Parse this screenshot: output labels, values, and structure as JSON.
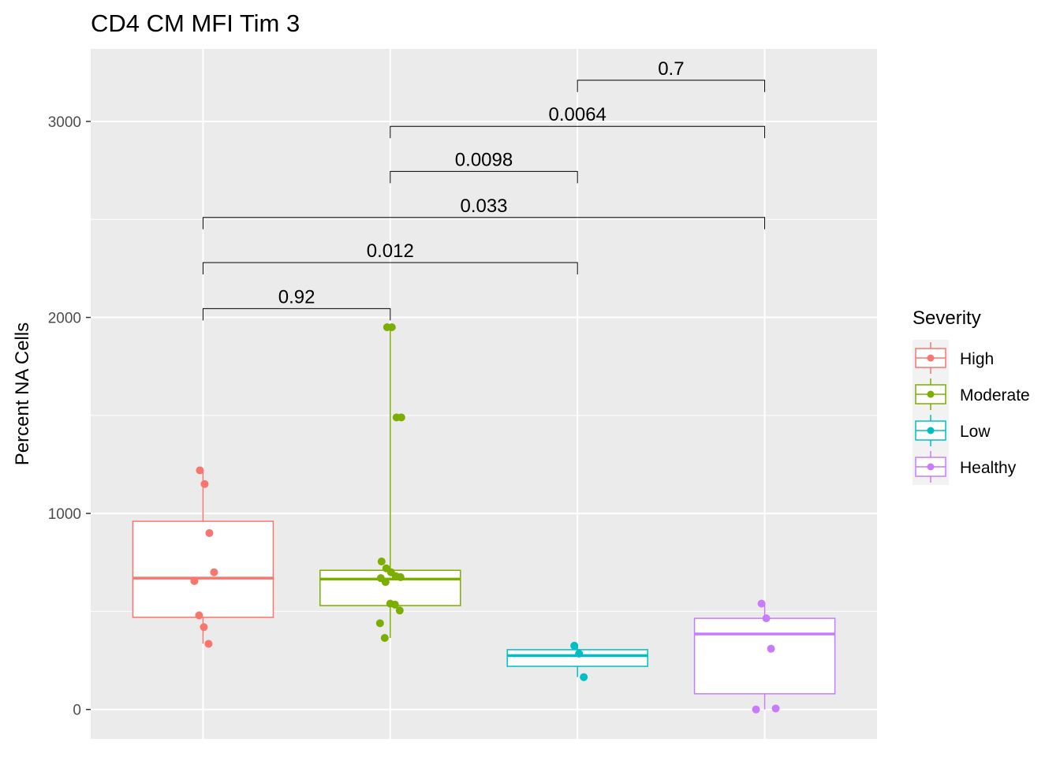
{
  "chart_data": {
    "type": "boxplot",
    "title": "CD4 CM MFI Tim 3",
    "xlabel": "",
    "ylabel": "Percent NA Cells",
    "ylim": [
      -150,
      3370
    ],
    "yticks": [
      0,
      1000,
      2000,
      3000
    ],
    "grid": true,
    "legend": {
      "title": "Severity",
      "position": "right"
    },
    "categories": [
      "High",
      "Moderate",
      "Low",
      "Healthy"
    ],
    "colors": {
      "High": "#F8766D",
      "Moderate": "#7CAE00",
      "Low": "#00BFC4",
      "Healthy": "#C77CFF"
    },
    "boxes": [
      {
        "name": "High",
        "whisker_low": 335,
        "q1": 470,
        "median": 670,
        "q3": 960,
        "whisker_high": 1220
      },
      {
        "name": "Moderate",
        "whisker_low": 365,
        "q1": 530,
        "median": 665,
        "q3": 710,
        "whisker_high": 1950
      },
      {
        "name": "Low",
        "whisker_low": 165,
        "q1": 220,
        "median": 275,
        "q3": 305,
        "whisker_high": 325
      },
      {
        "name": "Healthy",
        "whisker_low": 0,
        "q1": 80,
        "median": 385,
        "q3": 465,
        "whisker_high": 540
      }
    ],
    "points": [
      {
        "group": "High",
        "values": [
          1220,
          1150,
          900,
          700,
          655,
          480,
          420,
          335
        ]
      },
      {
        "group": "Moderate",
        "values": [
          1950,
          1950,
          1490,
          1490,
          755,
          720,
          700,
          680,
          675,
          670,
          650,
          540,
          535,
          505,
          440,
          365
        ]
      },
      {
        "group": "Low",
        "values": [
          325,
          285,
          165
        ]
      },
      {
        "group": "Healthy",
        "values": [
          540,
          465,
          310,
          5,
          0
        ]
      }
    ],
    "comparisons": [
      {
        "from": "High",
        "to": "Moderate",
        "p": "0.92",
        "y": 2045
      },
      {
        "from": "High",
        "to": "Low",
        "p": "0.012",
        "y": 2280
      },
      {
        "from": "High",
        "to": "Healthy",
        "p": "0.033",
        "y": 2510
      },
      {
        "from": "Moderate",
        "to": "Low",
        "p": "0.0098",
        "y": 2745
      },
      {
        "from": "Moderate",
        "to": "Healthy",
        "p": "0.0064",
        "y": 2975
      },
      {
        "from": "Low",
        "to": "Healthy",
        "p": "0.7",
        "y": 3210
      }
    ]
  }
}
